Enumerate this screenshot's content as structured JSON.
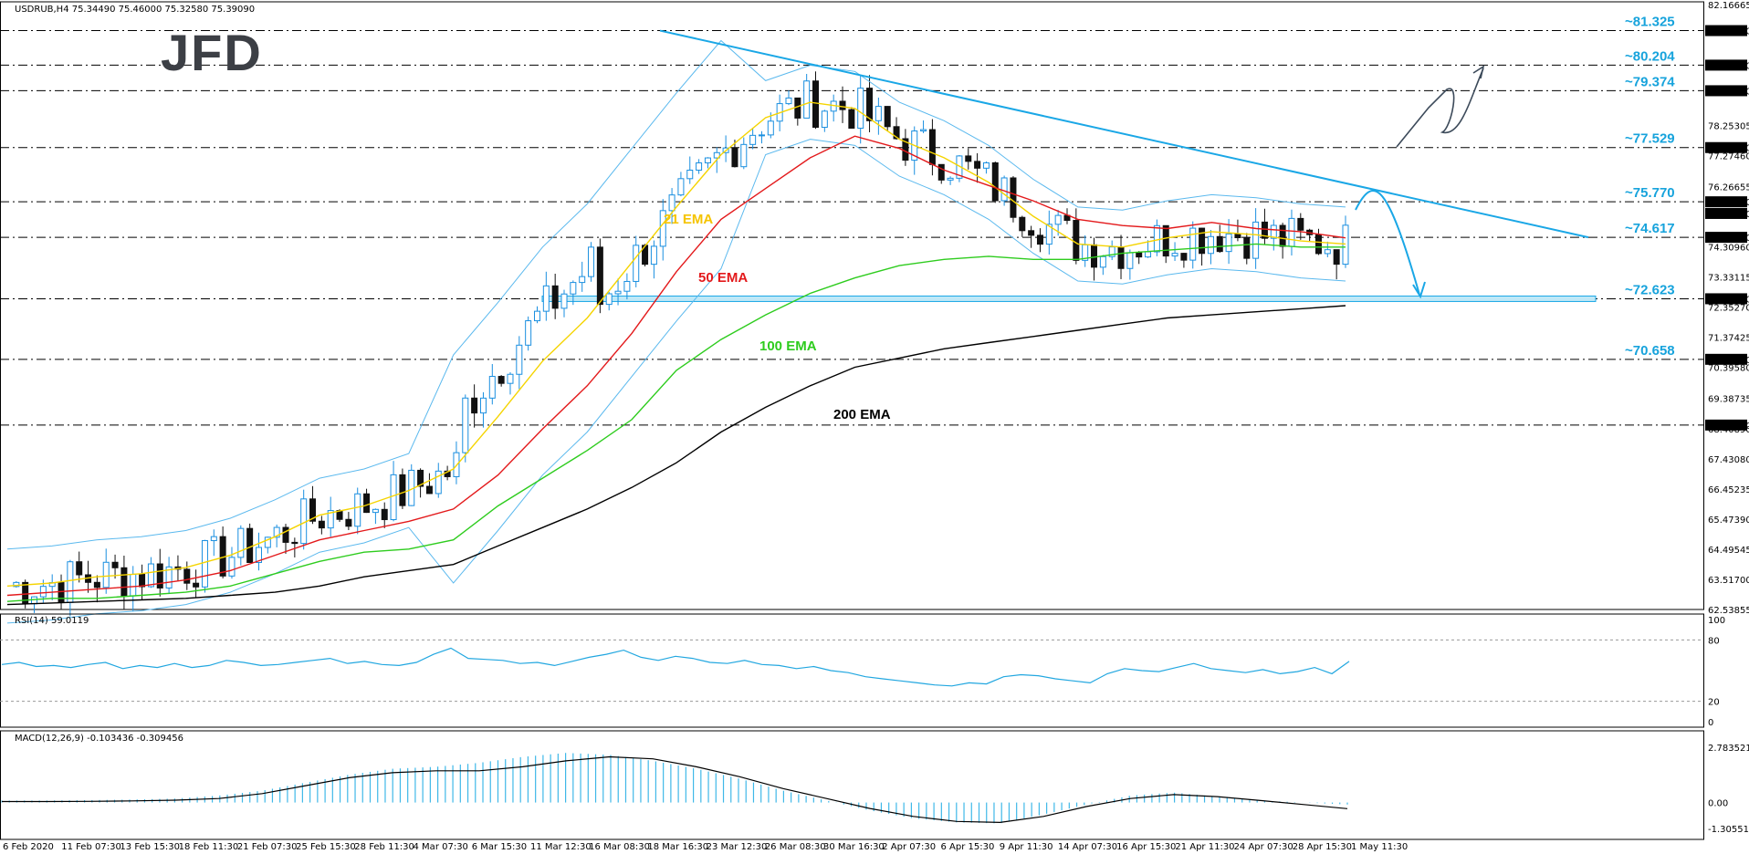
{
  "window": {
    "main_header": "USDRUB,H4  75.34490 75.46000 75.32580 75.39090",
    "rsi_header": "RSI(14) 59.0119",
    "macd_header": "MACD(12,26,9) -0.103436 -0.309456",
    "logo": "JFD"
  },
  "colors": {
    "price_line": "#1a8fe0",
    "resistance_trend": "#1aa7e6",
    "ema21": "#f5d400",
    "ema50": "#e3191b",
    "ema100": "#2ecc1e",
    "ema200": "#000000",
    "bollinger": "#5bb9ee",
    "rsi": "#22a7e0",
    "macd_hist": "#3fb8e8",
    "macd_signal": "#000000",
    "level_text": "#17a3dc",
    "level_label_bg": "#000000"
  },
  "chart_data": [
    {
      "type": "line",
      "title": "USDRUB,H4",
      "y_axis_ticks": [
        "82.16665",
        "81.32500",
        "80.20400",
        "79.37400",
        "78.25305",
        "77.52900",
        "77.27460",
        "76.26655",
        "75.77000",
        "75.39090",
        "74.61700",
        "74.30960",
        "73.33115",
        "72.62300",
        "72.35270",
        "71.37425",
        "70.65800",
        "70.39580",
        "69.38735",
        "68.52500",
        "68.40890",
        "67.43080",
        "66.45235",
        "65.47390",
        "64.49545",
        "63.51700",
        "62.53855"
      ],
      "ylim": [
        62.54,
        82.17
      ],
      "x_axis_ticks": [
        "6 Feb 2020",
        "11 Feb 07:30",
        "13 Feb 15:30",
        "18 Feb 11:30",
        "21 Feb 07:30",
        "25 Feb 15:30",
        "28 Feb 11:30",
        "4 Mar 07:30",
        "6 Mar 15:30",
        "11 Mar 12:30",
        "16 Mar 08:30",
        "18 Mar 16:30",
        "23 Mar 12:30",
        "26 Mar 08:30",
        "30 Mar 16:30",
        "2 Apr 07:30",
        "6 Apr 15:30",
        "9 Apr 11:30",
        "14 Apr 07:30",
        "16 Apr 15:30",
        "21 Apr 11:30",
        "24 Apr 07:30",
        "28 Apr 15:30",
        "1 May 11:30"
      ],
      "horizontal_levels": [
        {
          "label": "~81.325",
          "value": 81.325,
          "axis_label": "81.32500"
        },
        {
          "label": "~80.204",
          "value": 80.204,
          "axis_label": "80.20400"
        },
        {
          "label": "~79.374",
          "value": 79.374,
          "axis_label": "79.37400"
        },
        {
          "label": "~77.529",
          "value": 77.529,
          "axis_label": "77.52900"
        },
        {
          "label": "~75.770",
          "value": 75.77,
          "axis_label": "75.77000"
        },
        {
          "label": "~74.617",
          "value": 74.617,
          "axis_label": "74.61700"
        },
        {
          "label": "~72.623",
          "value": 72.623,
          "axis_label": "72.62300"
        },
        {
          "label": "~70.658",
          "value": 70.658,
          "axis_label": "70.65800"
        },
        {
          "label": "",
          "value": 68.525,
          "axis_label": "68.52500"
        }
      ],
      "current_price_label": "75.39090",
      "series": [
        {
          "name": "21 EMA",
          "values": [
            63.3,
            63.4,
            63.6,
            63.7,
            63.9,
            64.3,
            64.9,
            65.6,
            65.9,
            66.4,
            67.1,
            68.8,
            70.6,
            72.0,
            73.8,
            75.6,
            77.3,
            78.5,
            79.0,
            78.8,
            77.8,
            77.2,
            76.4,
            75.3,
            74.4,
            74.3,
            74.6,
            74.8,
            74.7,
            74.5,
            74.4
          ]
        },
        {
          "name": "50 EMA",
          "values": [
            63.0,
            63.1,
            63.2,
            63.3,
            63.5,
            63.8,
            64.3,
            64.8,
            65.1,
            65.4,
            65.8,
            66.9,
            68.4,
            69.8,
            71.5,
            73.5,
            75.2,
            76.2,
            77.2,
            77.9,
            77.5,
            76.8,
            76.3,
            75.8,
            75.2,
            75.0,
            74.9,
            75.1,
            74.9,
            74.8,
            74.6
          ]
        },
        {
          "name": "100 EMA",
          "values": [
            62.8,
            62.9,
            62.9,
            63.0,
            63.1,
            63.3,
            63.7,
            64.1,
            64.4,
            64.5,
            64.8,
            65.9,
            66.8,
            67.7,
            68.7,
            70.3,
            71.3,
            72.1,
            72.8,
            73.3,
            73.7,
            73.9,
            74.0,
            73.9,
            73.9,
            74.1,
            74.2,
            74.3,
            74.4,
            74.3,
            74.3
          ]
        },
        {
          "name": "200 EMA",
          "values": [
            62.7,
            62.75,
            62.8,
            62.85,
            62.9,
            63.0,
            63.1,
            63.3,
            63.6,
            63.8,
            64.0,
            64.6,
            65.2,
            65.8,
            66.5,
            67.3,
            68.3,
            69.1,
            69.8,
            70.4,
            70.7,
            71.0,
            71.2,
            71.4,
            71.6,
            71.8,
            72.0,
            72.1,
            72.2,
            72.3,
            72.4
          ]
        }
      ]
    },
    {
      "type": "line",
      "title": "RSI(14) 59.0119",
      "ylim": [
        0,
        100
      ],
      "y_axis_ticks": [
        "100",
        "80",
        "20",
        "0"
      ],
      "levels": [
        80,
        20
      ],
      "series": [
        {
          "name": "RSI(14)",
          "values": [
            56,
            58,
            54,
            55,
            53,
            56,
            58,
            52,
            55,
            53,
            57,
            53,
            55,
            60,
            58,
            55,
            56,
            58,
            60,
            62,
            57,
            59,
            56,
            55,
            58,
            66,
            72,
            62,
            61,
            60,
            57,
            58,
            55,
            59,
            63,
            66,
            70,
            63,
            60,
            64,
            62,
            58,
            57,
            60,
            56,
            55,
            52,
            54,
            50,
            48,
            44,
            42,
            40,
            38,
            36,
            35,
            38,
            37,
            44,
            46,
            45,
            42,
            40,
            38,
            47,
            52,
            50,
            49,
            53,
            57,
            52,
            50,
            48,
            51,
            47,
            49,
            53,
            47,
            59
          ]
        }
      ]
    },
    {
      "type": "bar",
      "title": "MACD(12,26,9) -0.103436 -0.309456",
      "ylim": [
        -1.305514,
        2.783521
      ],
      "y_axis_ticks": [
        "2.783521",
        "0.00",
        "-1.305514"
      ],
      "series": [
        {
          "name": "MACD",
          "values": [
            0.1,
            0.1,
            0.12,
            0.15,
            0.2,
            0.35,
            0.6,
            1.0,
            1.4,
            1.7,
            1.8,
            2.0,
            2.3,
            2.5,
            2.4,
            2.1,
            1.7,
            1.2,
            0.6,
            0.1,
            -0.4,
            -0.8,
            -1.0,
            -1.05,
            -0.6,
            -0.1,
            0.35,
            0.5,
            0.3,
            0.1,
            0.0,
            -0.1
          ]
        },
        {
          "name": "Signal",
          "values": [
            0.05,
            0.05,
            0.06,
            0.08,
            0.12,
            0.2,
            0.45,
            0.85,
            1.25,
            1.5,
            1.6,
            1.6,
            1.8,
            2.1,
            2.3,
            2.2,
            1.8,
            1.3,
            0.7,
            0.2,
            -0.3,
            -0.7,
            -0.95,
            -1.0,
            -0.7,
            -0.2,
            0.2,
            0.4,
            0.3,
            0.1,
            -0.1,
            -0.31
          ]
        }
      ]
    }
  ],
  "annotations": [
    {
      "text": "21 EMA",
      "color": "#f5c400"
    },
    {
      "text": "50 EMA",
      "color": "#e3191b"
    },
    {
      "text": "100 EMA",
      "color": "#2ecc1e"
    },
    {
      "text": "200 EMA",
      "color": "#000000"
    }
  ]
}
